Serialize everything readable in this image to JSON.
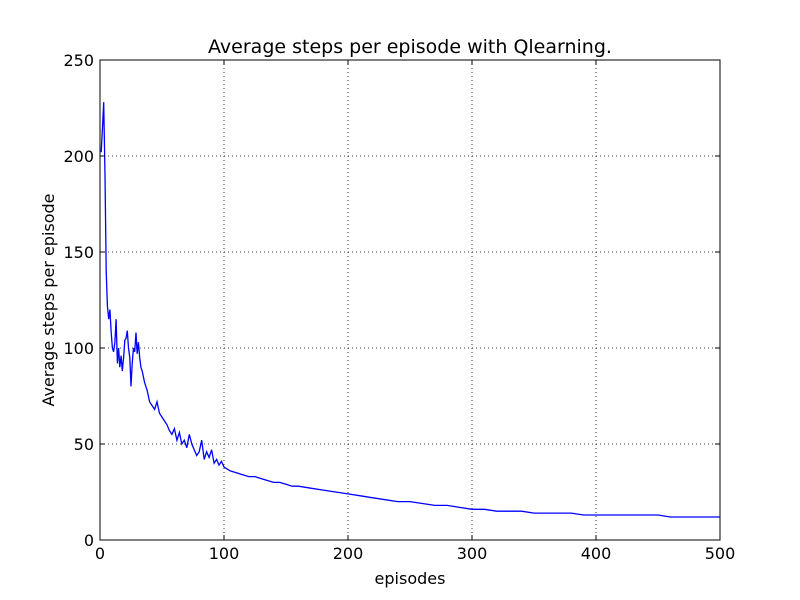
{
  "chart_data": {
    "type": "line",
    "title": "Average steps per episode with Qlearning.",
    "xlabel": "episodes",
    "ylabel": "Average steps per episode",
    "xlim": [
      0,
      500
    ],
    "ylim": [
      0,
      250
    ],
    "xticks": [
      0,
      100,
      200,
      300,
      400,
      500
    ],
    "yticks": [
      0,
      50,
      100,
      150,
      200,
      250
    ],
    "grid": true,
    "line_color": "#0000ff",
    "series": [
      {
        "x": [
          1,
          2,
          3,
          4,
          5,
          6,
          7,
          8,
          9,
          10,
          11,
          12,
          13,
          14,
          15,
          16,
          17,
          18,
          19,
          20,
          21,
          22,
          23,
          24,
          25,
          26,
          27,
          28,
          29,
          30,
          31,
          32,
          33,
          34,
          35,
          36,
          38,
          40,
          42,
          44,
          46,
          48,
          50,
          52,
          54,
          56,
          58,
          60,
          62,
          64,
          66,
          68,
          70,
          72,
          74,
          76,
          78,
          80,
          82,
          84,
          86,
          88,
          90,
          92,
          94,
          96,
          98,
          100,
          105,
          110,
          115,
          120,
          125,
          130,
          135,
          140,
          145,
          150,
          155,
          160,
          170,
          180,
          190,
          200,
          210,
          220,
          230,
          240,
          250,
          260,
          270,
          280,
          290,
          300,
          310,
          320,
          330,
          340,
          350,
          360,
          370,
          380,
          390,
          400,
          410,
          420,
          430,
          440,
          450,
          460,
          470,
          480,
          490,
          500
        ],
        "y": [
          202,
          215,
          228,
          190,
          140,
          122,
          115,
          120,
          108,
          100,
          98,
          103,
          115,
          92,
          100,
          90,
          96,
          88,
          95,
          104,
          105,
          109,
          100,
          95,
          80,
          92,
          100,
          98,
          108,
          97,
          103,
          95,
          90,
          88,
          85,
          82,
          78,
          72,
          70,
          68,
          72,
          66,
          64,
          62,
          60,
          57,
          55,
          58,
          52,
          56,
          50,
          52,
          48,
          55,
          50,
          47,
          44,
          46,
          52,
          42,
          46,
          43,
          47,
          40,
          42,
          39,
          41,
          38,
          36,
          35,
          34,
          33,
          33,
          32,
          31,
          30,
          30,
          29,
          28,
          28,
          27,
          26,
          25,
          24,
          23,
          22,
          21,
          20,
          20,
          19,
          18,
          18,
          17,
          16,
          16,
          15,
          15,
          15,
          14,
          14,
          14,
          14,
          13,
          13,
          13,
          13,
          13,
          13,
          13,
          12,
          12,
          12,
          12,
          12
        ]
      }
    ]
  }
}
